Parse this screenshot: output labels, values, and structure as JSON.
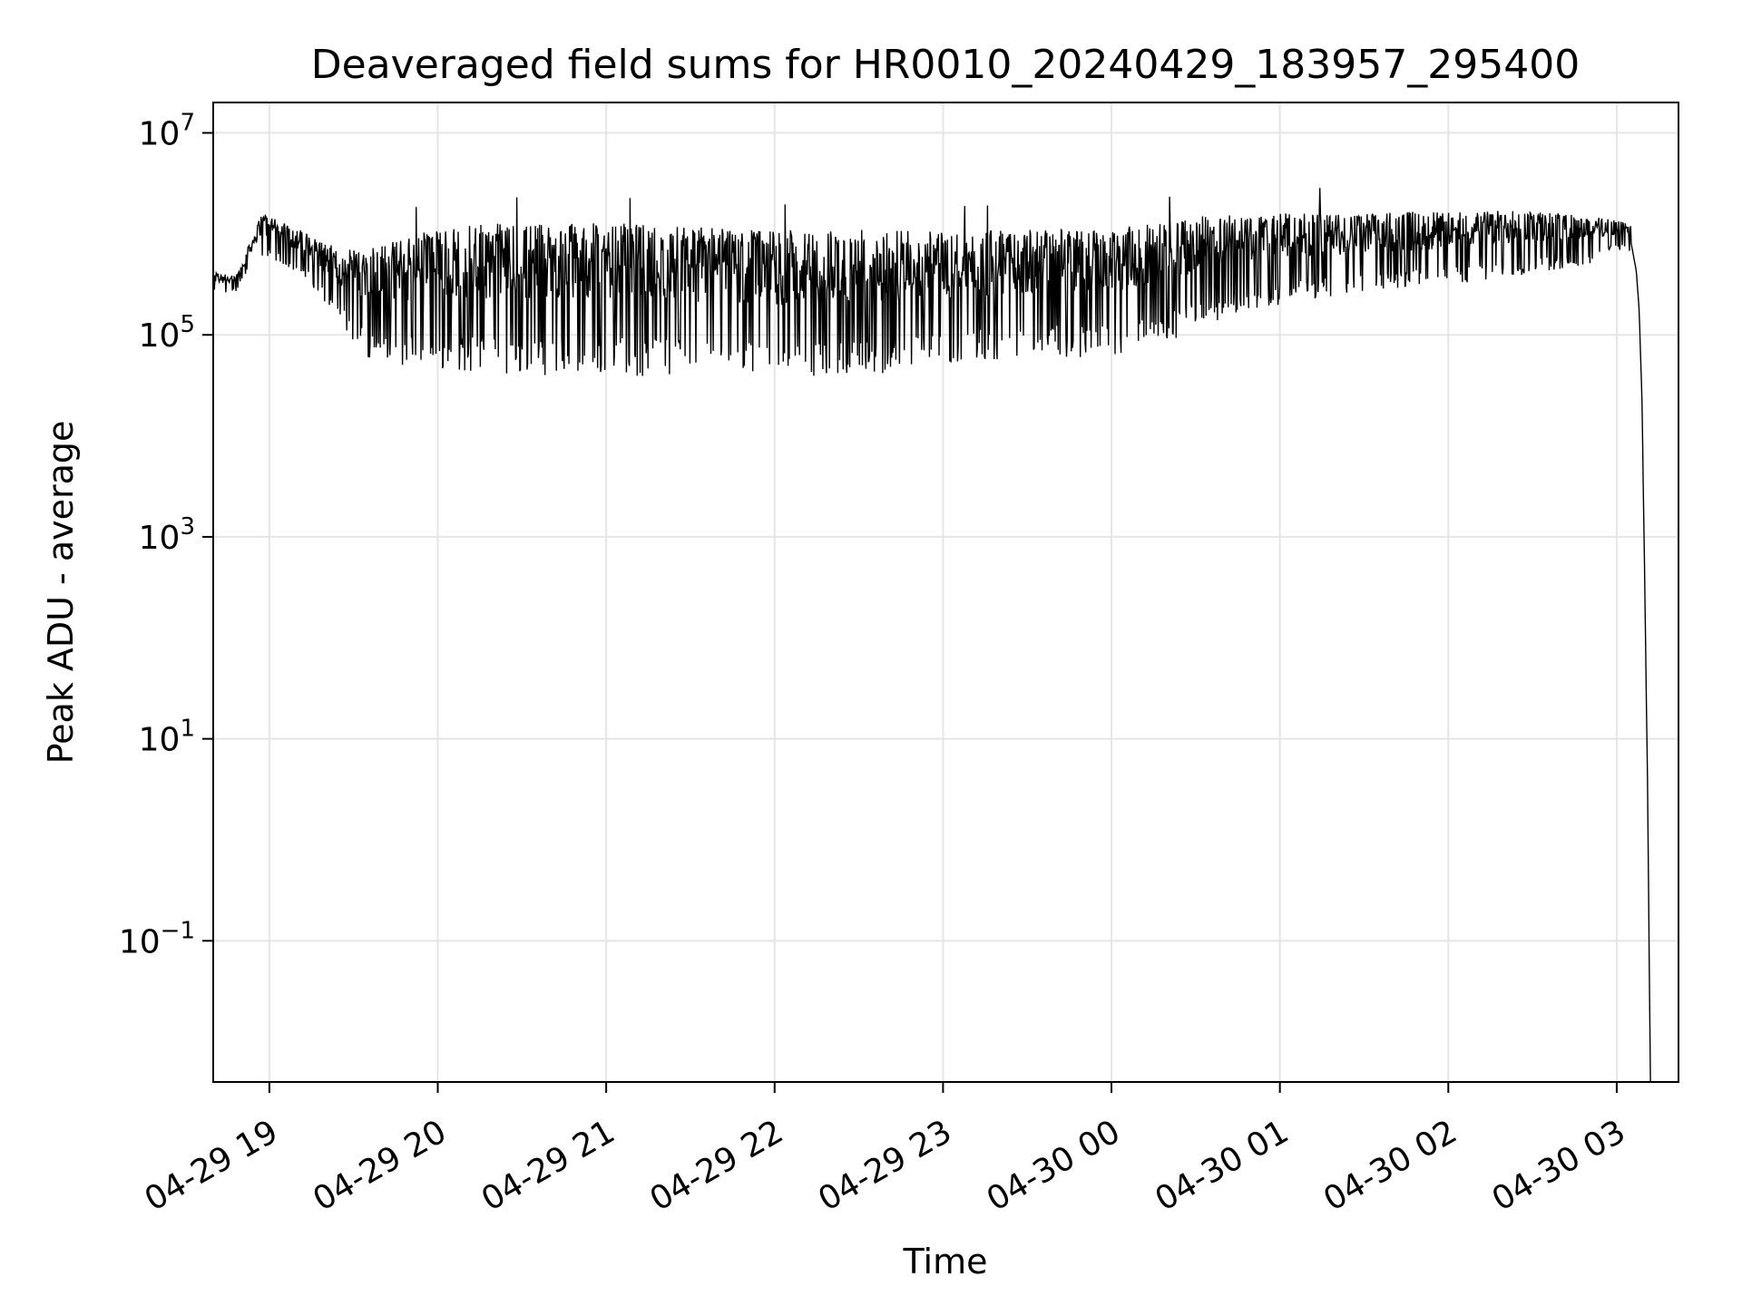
{
  "chart_data": {
    "type": "line",
    "title": "Deaveraged field sums for HR0010_20240429_183957_295400",
    "xlabel": "Time",
    "ylabel": "Peak ADU - average",
    "yscale": "log",
    "ylim": [
      0.004,
      20000000
    ],
    "xlim": [
      "2024-04-29 18:40",
      "2024-04-30 03:22"
    ],
    "grid": true,
    "line_color": "#000000",
    "x_ticks": [
      {
        "value": "2024-04-29 19:00",
        "label": "04-29 19"
      },
      {
        "value": "2024-04-29 20:00",
        "label": "04-29 20"
      },
      {
        "value": "2024-04-29 21:00",
        "label": "04-29 21"
      },
      {
        "value": "2024-04-29 22:00",
        "label": "04-29 22"
      },
      {
        "value": "2024-04-29 23:00",
        "label": "04-29 23"
      },
      {
        "value": "2024-04-30 00:00",
        "label": "04-30 00"
      },
      {
        "value": "2024-04-30 01:00",
        "label": "04-30 01"
      },
      {
        "value": "2024-04-30 02:00",
        "label": "04-30 02"
      },
      {
        "value": "2024-04-30 03:00",
        "label": "04-30 03"
      }
    ],
    "y_ticks": [
      {
        "value": 10000000,
        "base": "10",
        "exp": "7"
      },
      {
        "value": 100000,
        "base": "10",
        "exp": "5"
      },
      {
        "value": 1000,
        "base": "10",
        "exp": "3"
      },
      {
        "value": 10,
        "base": "10",
        "exp": "1"
      },
      {
        "value": 0.1,
        "base": "10",
        "exp": "−1"
      }
    ],
    "series": [
      {
        "envelope": {
          "x": [
            "2024-04-29 18:40",
            "2024-04-29 18:48",
            "2024-04-29 18:52",
            "2024-04-29 18:57",
            "2024-04-29 19:05",
            "2024-04-29 19:15",
            "2024-04-29 19:25",
            "2024-04-29 19:35",
            "2024-04-29 19:45",
            "2024-04-29 20:00",
            "2024-04-29 20:30",
            "2024-04-29 21:00",
            "2024-04-29 21:30",
            "2024-04-29 22:00",
            "2024-04-29 22:30",
            "2024-04-29 23:00",
            "2024-04-29 23:30",
            "2024-04-30 00:00",
            "2024-04-30 00:20",
            "2024-04-30 00:30",
            "2024-04-30 01:00",
            "2024-04-30 01:30",
            "2024-04-30 02:00",
            "2024-04-30 02:30",
            "2024-04-30 02:50",
            "2024-04-30 03:00",
            "2024-04-30 03:05",
            "2024-04-30 03:07",
            "2024-04-30 03:08",
            "2024-04-30 03:09",
            "2024-04-30 03:10",
            "2024-04-30 03:11",
            "2024-04-30 03:12"
          ],
          "upper": [
            420000,
            380000,
            700000,
            1600000,
            1300000,
            1000000,
            700000,
            700000,
            900000,
            1200000,
            1300000,
            1300000,
            1200000,
            1100000,
            1100000,
            1050000,
            1100000,
            1200000,
            1300000,
            1500000,
            1600000,
            1600000,
            1700000,
            1700000,
            1500000,
            1400000,
            1200000,
            600000,
            300000,
            50000,
            1000,
            10,
            0.004
          ],
          "lower": [
            250000,
            260000,
            420000,
            600000,
            500000,
            300000,
            130000,
            60000,
            50000,
            45000,
            40000,
            40000,
            38000,
            35000,
            37000,
            50000,
            60000,
            60000,
            80000,
            120000,
            200000,
            250000,
            300000,
            400000,
            500000,
            700000,
            600000,
            300000,
            100000,
            10000,
            100,
            1,
            0.004
          ]
        }
      }
    ]
  }
}
